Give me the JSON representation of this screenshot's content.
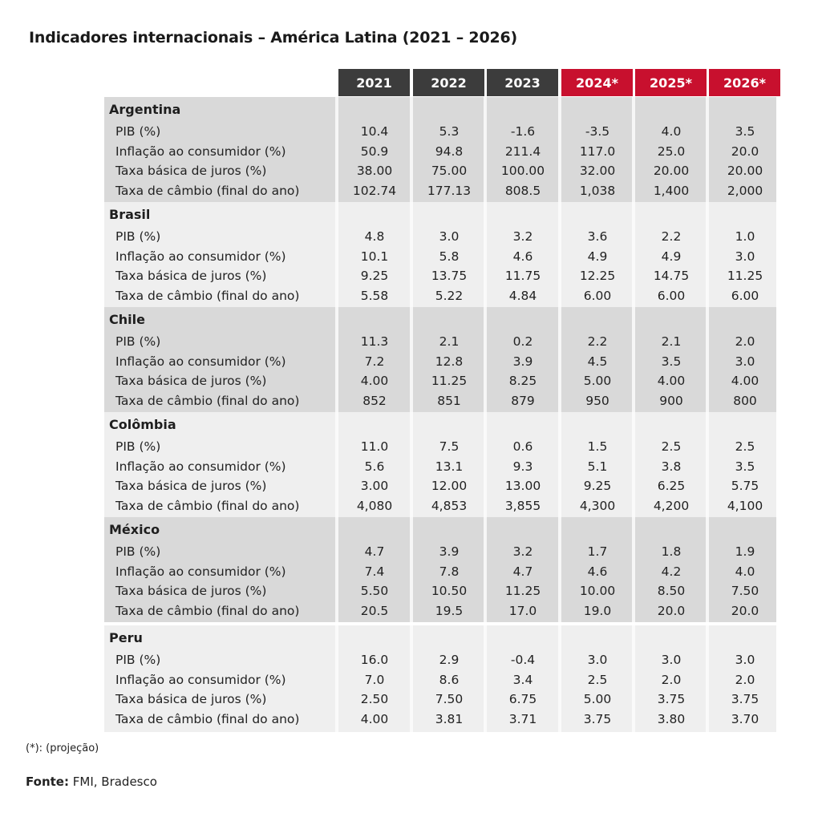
{
  "title": "Indicadores internacionais – América Latina (2021 – 2026)",
  "years": [
    {
      "label": "2021",
      "projection": false
    },
    {
      "label": "2022",
      "projection": false
    },
    {
      "label": "2023",
      "projection": false
    },
    {
      "label": "2024*",
      "projection": true
    },
    {
      "label": "2025*",
      "projection": true
    },
    {
      "label": "2026*",
      "projection": true
    }
  ],
  "colors": {
    "historic_header": "#3c3c3c",
    "projection_header": "#c8102e",
    "dark_block": "#d9d9d9",
    "light_block": "#efefef"
  },
  "countries": [
    {
      "name": "Argentina",
      "rows": [
        {
          "label": "PIB (%)",
          "values": [
            "10.4",
            "5.3",
            "-1.6",
            "-3.5",
            "4.0",
            "3.5"
          ]
        },
        {
          "label": "Inflação ao consumidor (%)",
          "values": [
            "50.9",
            "94.8",
            "211.4",
            "117.0",
            "25.0",
            "20.0"
          ]
        },
        {
          "label": "Taxa básica de juros (%)",
          "values": [
            "38.00",
            "75.00",
            "100.00",
            "32.00",
            "20.00",
            "20.00"
          ]
        },
        {
          "label": "Taxa de câmbio (final do ano)",
          "values": [
            "102.74",
            "177.13",
            "808.5",
            "1,038",
            "1,400",
            "2,000"
          ]
        }
      ]
    },
    {
      "name": "Brasil",
      "rows": [
        {
          "label": "PIB (%)",
          "values": [
            "4.8",
            "3.0",
            "3.2",
            "3.6",
            "2.2",
            "1.0"
          ]
        },
        {
          "label": "Inflação ao consumidor (%)",
          "values": [
            "10.1",
            "5.8",
            "4.6",
            "4.9",
            "4.9",
            "3.0"
          ]
        },
        {
          "label": "Taxa básica de juros (%)",
          "values": [
            "9.25",
            "13.75",
            "11.75",
            "12.25",
            "14.75",
            "11.25"
          ]
        },
        {
          "label": "Taxa de câmbio (final do ano)",
          "values": [
            "5.58",
            "5.22",
            "4.84",
            "6.00",
            "6.00",
            "6.00"
          ]
        }
      ]
    },
    {
      "name": "Chile",
      "rows": [
        {
          "label": "PIB (%)",
          "values": [
            "11.3",
            "2.1",
            "0.2",
            "2.2",
            "2.1",
            "2.0"
          ]
        },
        {
          "label": "Inflação ao consumidor (%)",
          "values": [
            "7.2",
            "12.8",
            "3.9",
            "4.5",
            "3.5",
            "3.0"
          ]
        },
        {
          "label": "Taxa básica de juros (%)",
          "values": [
            "4.00",
            "11.25",
            "8.25",
            "5.00",
            "4.00",
            "4.00"
          ]
        },
        {
          "label": "Taxa de câmbio (final do ano)",
          "values": [
            "852",
            "851",
            "879",
            "950",
            "900",
            "800"
          ]
        }
      ]
    },
    {
      "name": "Colômbia",
      "rows": [
        {
          "label": "PIB (%)",
          "values": [
            "11.0",
            "7.5",
            "0.6",
            "1.5",
            "2.5",
            "2.5"
          ]
        },
        {
          "label": "Inflação ao consumidor (%)",
          "values": [
            "5.6",
            "13.1",
            "9.3",
            "5.1",
            "3.8",
            "3.5"
          ]
        },
        {
          "label": "Taxa básica de juros (%)",
          "values": [
            "3.00",
            "12.00",
            "13.00",
            "9.25",
            "6.25",
            "5.75"
          ]
        },
        {
          "label": "Taxa de câmbio (final do ano)",
          "values": [
            "4,080",
            "4,853",
            "3,855",
            "4,300",
            "4,200",
            "4,100"
          ]
        }
      ]
    },
    {
      "name": "México",
      "rows": [
        {
          "label": "PIB (%)",
          "values": [
            "4.7",
            "3.9",
            "3.2",
            "1.7",
            "1.8",
            "1.9"
          ]
        },
        {
          "label": "Inflação ao consumidor (%)",
          "values": [
            "7.4",
            "7.8",
            "4.7",
            "4.6",
            "4.2",
            "4.0"
          ]
        },
        {
          "label": "Taxa básica de juros (%)",
          "values": [
            "5.50",
            "10.50",
            "11.25",
            "10.00",
            "8.50",
            "7.50"
          ]
        },
        {
          "label": "Taxa de câmbio (final do ano)",
          "values": [
            "20.5",
            "19.5",
            "17.0",
            "19.0",
            "20.0",
            "20.0"
          ]
        }
      ]
    },
    {
      "name": "Peru",
      "rows": [
        {
          "label": "PIB (%)",
          "values": [
            "16.0",
            "2.9",
            "-0.4",
            "3.0",
            "3.0",
            "3.0"
          ]
        },
        {
          "label": "Inflação ao consumidor (%)",
          "values": [
            "7.0",
            "8.6",
            "3.4",
            "2.5",
            "2.0",
            "2.0"
          ]
        },
        {
          "label": "Taxa básica de juros (%)",
          "values": [
            "2.50",
            "7.50",
            "6.75",
            "5.00",
            "3.75",
            "3.75"
          ]
        },
        {
          "label": "Taxa de câmbio (final do ano)",
          "values": [
            "4.00",
            "3.81",
            "3.71",
            "3.75",
            "3.80",
            "3.70"
          ]
        }
      ]
    }
  ],
  "footnote": "(*): (projeção)",
  "source": {
    "label": "Fonte:",
    "text": "FMI, Bradesco"
  }
}
